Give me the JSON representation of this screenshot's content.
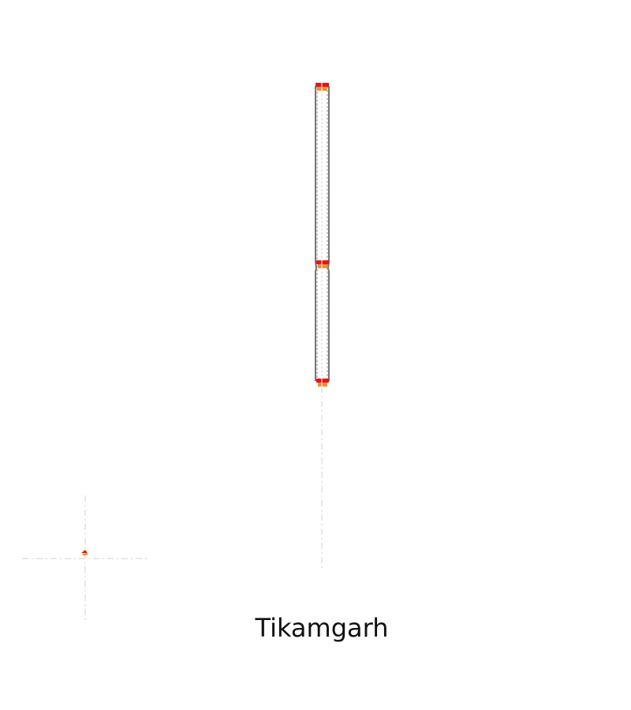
{
  "map": {
    "label": "Tikamgarh",
    "colors": {
      "background": "#ffffff",
      "outline": "#777777",
      "guide_line": "#d9d9d9",
      "marker_red": "#e8141c",
      "marker_orange": "#f28e2b"
    },
    "icons": {
      "top_marker": "red-orange-marker",
      "middle_marker": "red-orange-marker",
      "bottom_marker": "red-orange-marker",
      "inset_marker": "red-orange-marker"
    }
  }
}
